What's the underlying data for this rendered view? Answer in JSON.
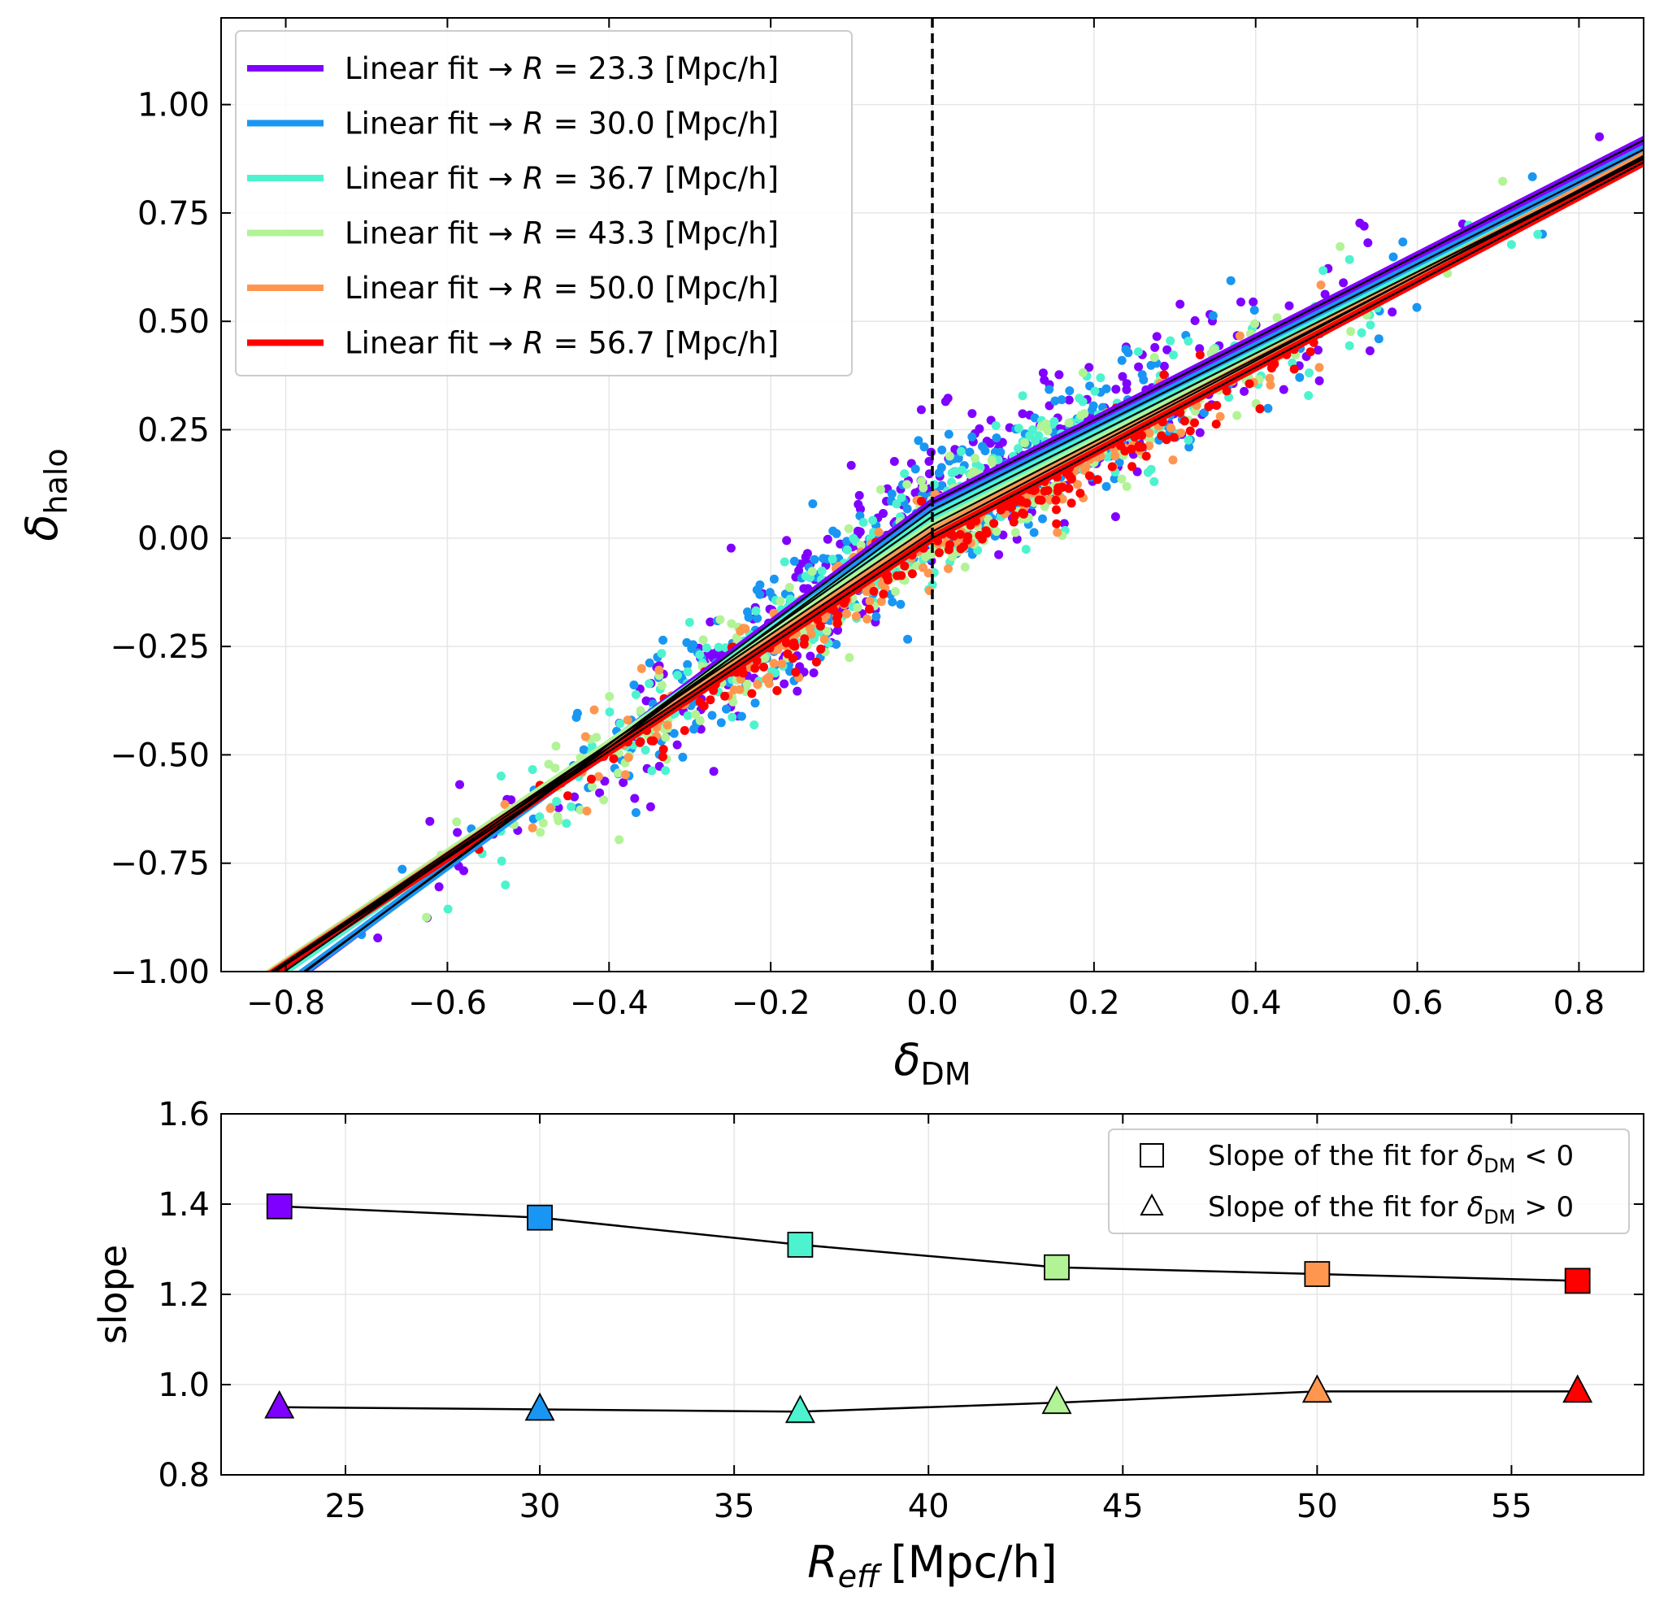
{
  "chart_data": [
    {
      "type": "scatter",
      "panel": "top",
      "xlabel": "δ",
      "xlabel_sub": "DM",
      "ylabel": "δ",
      "ylabel_sub": "halo",
      "xlim": [
        -0.88,
        0.88
      ],
      "ylim": [
        -1.0,
        1.2
      ],
      "xticks": [
        -0.8,
        -0.6,
        -0.4,
        -0.2,
        0.0,
        0.2,
        0.4,
        0.6,
        0.8
      ],
      "xtick_labels": [
        "−0.8",
        "−0.6",
        "−0.4",
        "−0.2",
        "0.0",
        "0.2",
        "0.4",
        "0.6",
        "0.8"
      ],
      "yticks": [
        -1.0,
        -0.75,
        -0.5,
        -0.25,
        0.0,
        0.25,
        0.5,
        0.75,
        1.0
      ],
      "ytick_labels": [
        "−1.00",
        "−0.75",
        "−0.50",
        "−0.25",
        "0.00",
        "0.25",
        "0.50",
        "0.75",
        "1.00"
      ],
      "grid": true,
      "vline_x": 0.0,
      "legend_position": "upper-left",
      "series": [
        {
          "name": "Linear fit → R = 23.3 [Mpc/h]",
          "prefix": "Linear fit",
          "arrow": "→",
          "R_label": "R",
          "eq": "= 23.3",
          "units": "[Mpc/h]",
          "color": "#8000ff",
          "slope_neg": 1.395,
          "slope_pos": 0.95,
          "intercept": 0.082,
          "spread": 0.09
        },
        {
          "name": "Linear fit → R = 30.0 [Mpc/h]",
          "prefix": "Linear fit",
          "arrow": "→",
          "R_label": "R",
          "eq": "= 30.0",
          "units": "[Mpc/h]",
          "color": "#1996f3",
          "slope_neg": 1.37,
          "slope_pos": 0.945,
          "intercept": 0.065,
          "spread": 0.075
        },
        {
          "name": "Linear fit → R = 36.7 [Mpc/h]",
          "prefix": "Linear fit",
          "arrow": "→",
          "R_label": "R",
          "eq": "= 36.7",
          "units": "[Mpc/h]",
          "color": "#4df3ce",
          "slope_neg": 1.31,
          "slope_pos": 0.94,
          "intercept": 0.05,
          "spread": 0.065
        },
        {
          "name": "Linear fit → R = 43.3 [Mpc/h]",
          "prefix": "Linear fit",
          "arrow": "→",
          "R_label": "R",
          "eq": "= 43.3",
          "units": "[Mpc/h]",
          "color": "#b2f396",
          "slope_neg": 1.26,
          "slope_pos": 0.96,
          "intercept": 0.03,
          "spread": 0.055
        },
        {
          "name": "Linear fit → R = 50.0 [Mpc/h]",
          "prefix": "Linear fit",
          "arrow": "→",
          "R_label": "R",
          "eq": "= 50.0",
          "units": "[Mpc/h]",
          "color": "#ff964f",
          "slope_neg": 1.245,
          "slope_pos": 0.985,
          "intercept": 0.015,
          "spread": 0.045
        },
        {
          "name": "Linear fit → R = 56.7 [Mpc/h]",
          "prefix": "Linear fit",
          "arrow": "→",
          "R_label": "R",
          "eq": "= 56.7",
          "units": "[Mpc/h]",
          "color": "#ff0000",
          "slope_neg": 1.23,
          "slope_pos": 0.985,
          "intercept": 0.0,
          "spread": 0.04
        }
      ]
    },
    {
      "type": "line",
      "panel": "bottom",
      "xlabel": "R",
      "xlabel_sub": "eff",
      "xlabel_units": "[Mpc/h]",
      "ylabel": "slope",
      "xlim": [
        21.8,
        58.4
      ],
      "ylim": [
        0.8,
        1.6
      ],
      "xticks": [
        25,
        30,
        35,
        40,
        45,
        50,
        55
      ],
      "xtick_labels": [
        "25",
        "30",
        "35",
        "40",
        "45",
        "50",
        "55"
      ],
      "yticks": [
        0.8,
        1.0,
        1.2,
        1.4,
        1.6
      ],
      "ytick_labels": [
        "0.8",
        "1.0",
        "1.2",
        "1.4",
        "1.6"
      ],
      "grid": true,
      "legend_position": "upper-right",
      "x": [
        23.3,
        30.0,
        36.7,
        43.3,
        50.0,
        56.7
      ],
      "colors": [
        "#8000ff",
        "#1996f3",
        "#4df3ce",
        "#b2f396",
        "#ff964f",
        "#ff0000"
      ],
      "series": [
        {
          "name": "Slope of the fit for δDM < 0",
          "label": "Slope of the fit for",
          "sym": "δ",
          "sub": "DM",
          "cond": "< 0",
          "marker": "square",
          "values": [
            1.395,
            1.37,
            1.31,
            1.26,
            1.245,
            1.23
          ]
        },
        {
          "name": "Slope of the fit for δDM > 0",
          "label": "Slope of the fit for",
          "sym": "δ",
          "sub": "DM",
          "cond": "> 0",
          "marker": "triangle",
          "values": [
            0.95,
            0.945,
            0.94,
            0.96,
            0.985,
            0.985
          ]
        }
      ]
    }
  ]
}
